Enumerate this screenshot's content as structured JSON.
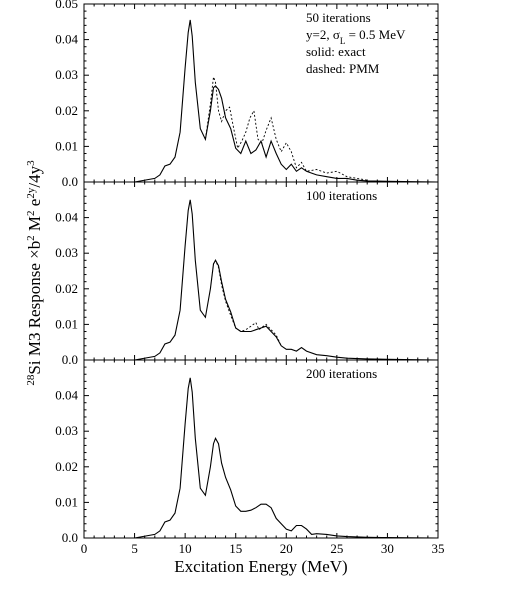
{
  "chart_data": [
    {
      "type": "line",
      "annotations": [
        "50 iterations",
        "y=2, σ_L = 0.5 MeV",
        "solid: exact",
        "dashed: PMM"
      ],
      "xlim": [
        0,
        35
      ],
      "ylim": [
        0,
        0.05
      ],
      "yticks": [
        "0.0",
        "0.01",
        "0.02",
        "0.03",
        "0.04",
        "0.05"
      ],
      "series": [
        {
          "name": "exact",
          "style": "solid",
          "x": [
            0,
            5,
            7,
            7.5,
            8,
            8.5,
            9,
            9.5,
            10,
            10.3,
            10.5,
            10.7,
            11,
            11.5,
            12,
            12.5,
            12.8,
            13,
            13.3,
            13.6,
            14,
            14.5,
            15,
            15.5,
            16,
            16.5,
            17,
            17.5,
            18,
            18.5,
            19,
            19.5,
            20,
            20.5,
            21,
            21.5,
            22,
            22.5,
            23,
            24,
            25,
            26,
            27,
            28,
            30,
            35
          ],
          "y": [
            0,
            0,
            0.001,
            0.002,
            0.0045,
            0.005,
            0.007,
            0.014,
            0.032,
            0.042,
            0.0455,
            0.041,
            0.028,
            0.015,
            0.012,
            0.02,
            0.0265,
            0.027,
            0.026,
            0.0235,
            0.018,
            0.015,
            0.0095,
            0.008,
            0.0115,
            0.008,
            0.009,
            0.0115,
            0.007,
            0.0115,
            0.008,
            0.005,
            0.0035,
            0.005,
            0.003,
            0.004,
            0.003,
            0.0025,
            0.002,
            0.0015,
            0.001,
            0.001,
            0.0005,
            0.0003,
            0.0002,
            0
          ]
        },
        {
          "name": "PMM",
          "style": "dashed",
          "x": [
            12,
            12.5,
            12.8,
            13,
            13.3,
            13.6,
            14,
            14.4,
            14.8,
            15.2,
            15.6,
            16,
            16.4,
            16.8,
            17.2,
            17.6,
            18,
            18.5,
            19,
            19.5,
            20,
            20.5,
            21,
            21.5,
            22,
            23,
            24,
            25,
            26,
            27,
            28
          ],
          "y": [
            0.012,
            0.022,
            0.0295,
            0.028,
            0.02,
            0.017,
            0.02,
            0.021,
            0.015,
            0.0095,
            0.0115,
            0.014,
            0.018,
            0.02,
            0.012,
            0.011,
            0.0145,
            0.018,
            0.012,
            0.0085,
            0.011,
            0.0085,
            0.004,
            0.0055,
            0.003,
            0.0035,
            0.0025,
            0.003,
            0.0015,
            0.001,
            0.0005
          ]
        }
      ]
    },
    {
      "type": "line",
      "annotations": [
        "100 iterations"
      ],
      "xlim": [
        0,
        35
      ],
      "ylim": [
        0,
        0.05
      ],
      "yticks": [
        "0.0",
        "0.01",
        "0.02",
        "0.03",
        "0.04"
      ],
      "series": [
        {
          "name": "exact",
          "style": "solid",
          "x": [
            0,
            5,
            7,
            7.5,
            8,
            8.5,
            9,
            9.5,
            10,
            10.3,
            10.5,
            10.7,
            11,
            11.5,
            12,
            12.5,
            12.8,
            13,
            13.3,
            13.6,
            14,
            14.5,
            15,
            15.5,
            16,
            16.5,
            17,
            17.5,
            18,
            18.5,
            19,
            19.5,
            20,
            20.5,
            21,
            21.5,
            22,
            23,
            24,
            25,
            26,
            28,
            30,
            35
          ],
          "y": [
            0,
            0,
            0.001,
            0.002,
            0.0045,
            0.005,
            0.007,
            0.014,
            0.032,
            0.042,
            0.045,
            0.041,
            0.028,
            0.014,
            0.012,
            0.02,
            0.027,
            0.028,
            0.0265,
            0.022,
            0.017,
            0.0135,
            0.009,
            0.008,
            0.008,
            0.008,
            0.0085,
            0.009,
            0.0095,
            0.008,
            0.0065,
            0.004,
            0.003,
            0.003,
            0.0025,
            0.0035,
            0.0025,
            0.0015,
            0.0012,
            0.0008,
            0.0005,
            0.0003,
            0.0002,
            0
          ]
        },
        {
          "name": "PMM",
          "style": "dashed",
          "x": [
            12.5,
            12.8,
            13,
            13.3,
            13.6,
            14,
            14.5,
            15,
            15.5,
            16,
            16.5,
            17,
            17.3,
            17.6,
            18,
            18.5,
            19,
            19.5
          ],
          "y": [
            0.02,
            0.027,
            0.028,
            0.026,
            0.021,
            0.0165,
            0.0125,
            0.009,
            0.008,
            0.0085,
            0.0095,
            0.0105,
            0.0085,
            0.0092,
            0.01,
            0.0085,
            0.007,
            0.004
          ]
        }
      ]
    },
    {
      "type": "line",
      "annotations": [
        "200 iterations"
      ],
      "xlim": [
        0,
        35
      ],
      "ylim": [
        0,
        0.05
      ],
      "xticks": [
        "0",
        "5",
        "10",
        "15",
        "20",
        "25",
        "30",
        "35"
      ],
      "yticks": [
        "0.0",
        "0.01",
        "0.02",
        "0.03",
        "0.04"
      ],
      "series": [
        {
          "name": "exact",
          "style": "solid",
          "x": [
            0,
            5,
            7,
            7.5,
            8,
            8.5,
            9,
            9.5,
            10,
            10.3,
            10.5,
            10.7,
            11,
            11.5,
            12,
            12.5,
            12.8,
            13,
            13.3,
            13.6,
            14,
            14.5,
            15,
            15.5,
            16,
            16.5,
            17,
            17.5,
            18,
            18.5,
            19,
            19.5,
            20,
            20.5,
            21,
            21.5,
            22,
            22.5,
            23,
            24,
            25,
            26,
            28,
            30,
            35
          ],
          "y": [
            0,
            0,
            0.001,
            0.002,
            0.0045,
            0.005,
            0.007,
            0.014,
            0.032,
            0.042,
            0.045,
            0.041,
            0.028,
            0.014,
            0.012,
            0.02,
            0.0265,
            0.028,
            0.0265,
            0.021,
            0.017,
            0.0135,
            0.009,
            0.0075,
            0.0075,
            0.0078,
            0.0085,
            0.0095,
            0.0095,
            0.0085,
            0.0055,
            0.004,
            0.0025,
            0.002,
            0.0035,
            0.0035,
            0.0025,
            0.001,
            0.0012,
            0.001,
            0.0006,
            0.0004,
            0.0002,
            0.0001,
            0
          ]
        }
      ]
    }
  ],
  "axes": {
    "xlabel": "Excitation Energy (MeV)",
    "ylabel_html": "<tspan baseline-shift=\"super\" font-size=\"11\">28</tspan>Si M3 Response ×b<tspan baseline-shift=\"super\" font-size=\"11\">2</tspan> M<tspan baseline-shift=\"super\" font-size=\"11\">2</tspan> e<tspan baseline-shift=\"super\" font-size=\"11\">2y</tspan>/4y<tspan baseline-shift=\"super\" font-size=\"11\">3</tspan>"
  }
}
